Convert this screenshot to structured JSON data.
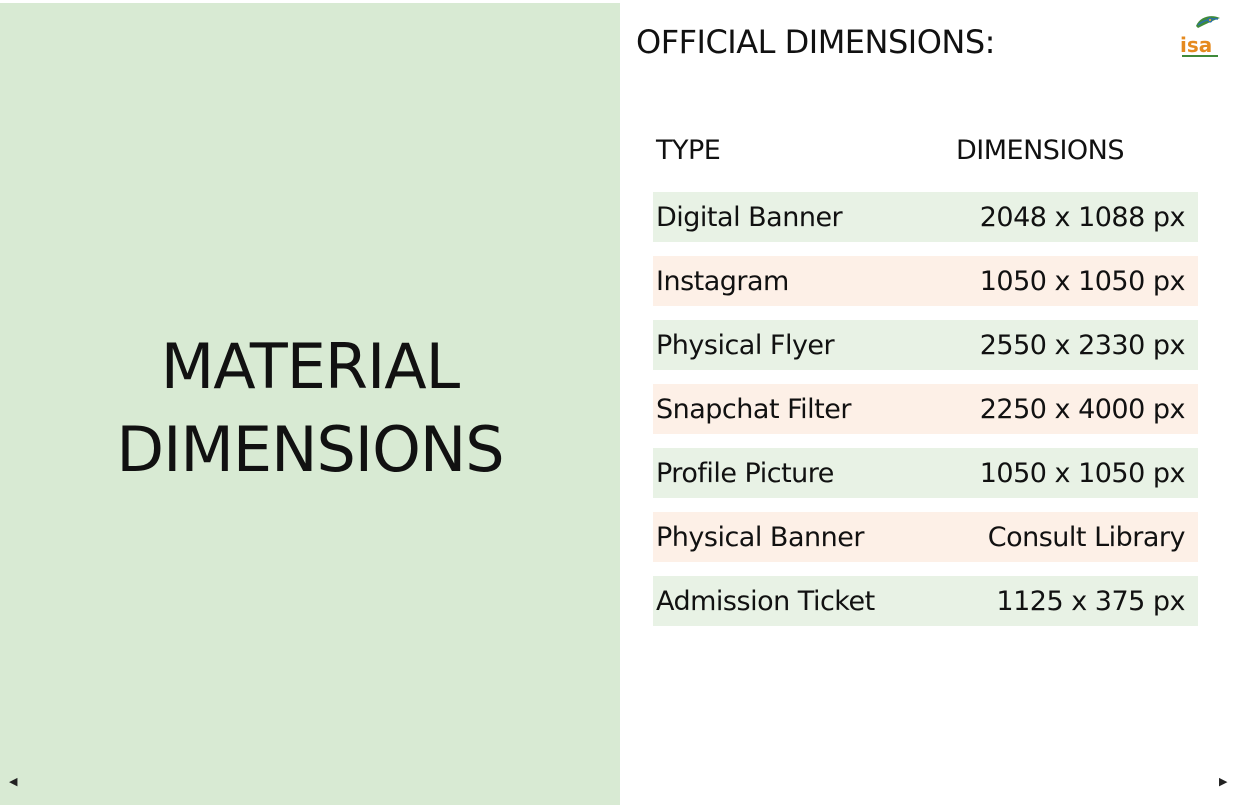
{
  "slide": {
    "main_title_line1": "MATERIAL",
    "main_title_line2": "DIMENSIONS",
    "section_title": "OFFICIAL DIMENSIONS:",
    "logo_text": "isa",
    "table": {
      "headers": {
        "type": "TYPE",
        "dimensions": "DIMENSIONS"
      },
      "rows": [
        {
          "type": "Digital Banner",
          "dimensions": "2048 x 1088 px"
        },
        {
          "type": "Instagram",
          "dimensions": "1050 x 1050 px"
        },
        {
          "type": "Physical Flyer",
          "dimensions": "2550 x 2330 px"
        },
        {
          "type": "Snapchat Filter",
          "dimensions": "2250 x 4000 px"
        },
        {
          "type": "Profile Picture",
          "dimensions": "1050 x 1050 px"
        },
        {
          "type": "Physical Banner",
          "dimensions": "Consult Library"
        },
        {
          "type": "Admission Ticket",
          "dimensions": "1125 x 375 px"
        }
      ]
    }
  },
  "nav": {
    "prev_icon": "triangle-left-icon",
    "next_icon": "triangle-right-icon",
    "prev_glyph": "◀",
    "next_glyph": "▶"
  },
  "colors": {
    "left_panel": "#d8ead3",
    "row_green": "#e8f2e5",
    "row_peach": "#fdf0e7",
    "logo_orange": "#e58a1f",
    "logo_green": "#3f8a3a"
  }
}
